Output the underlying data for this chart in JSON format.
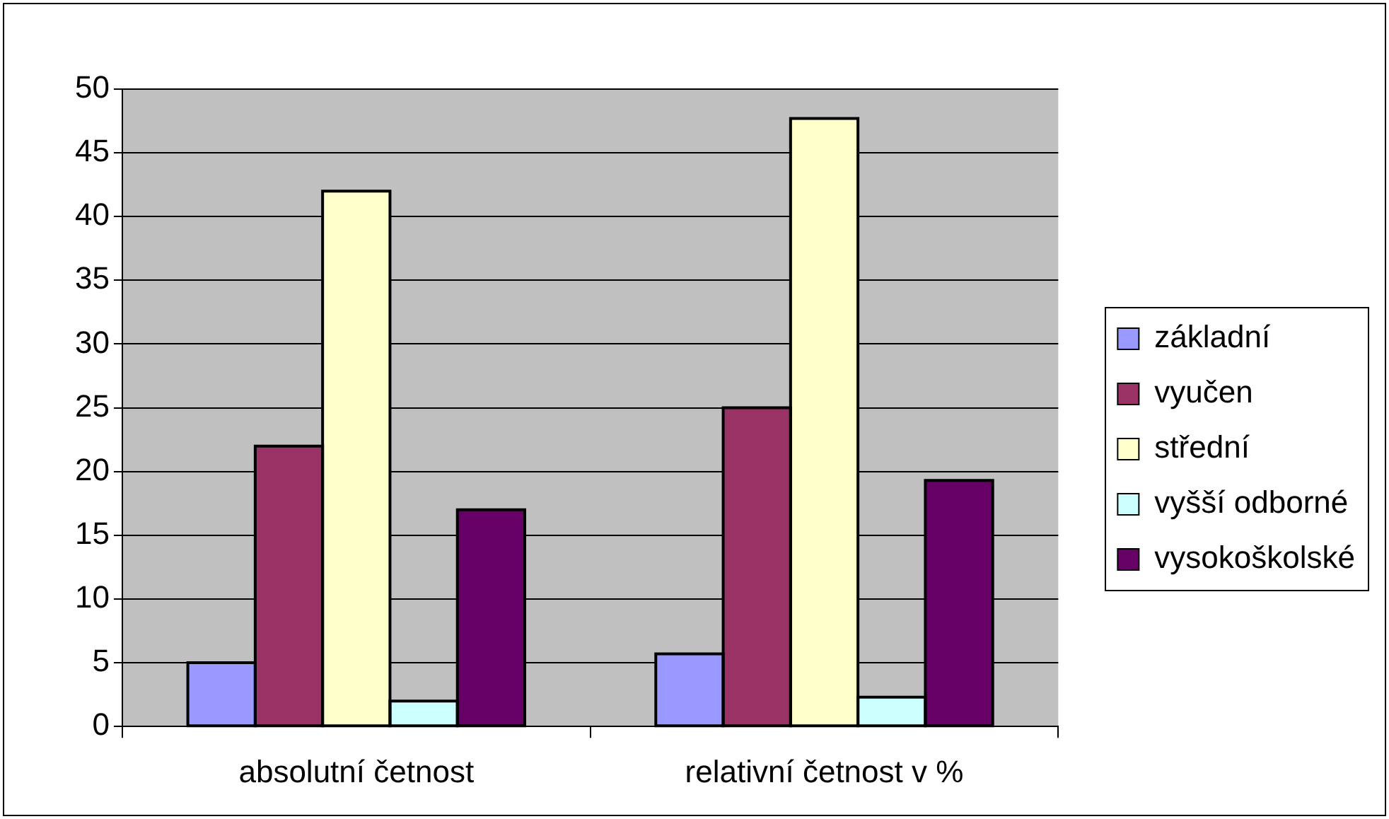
{
  "chart_data": {
    "type": "bar",
    "categories": [
      "absolutní četnost",
      "relativní četnost v %"
    ],
    "series": [
      {
        "name": "základní",
        "color": "#9999ff",
        "values": [
          5,
          5.7
        ]
      },
      {
        "name": "vyučen",
        "color": "#993366",
        "values": [
          22,
          25
        ]
      },
      {
        "name": "střední",
        "color": "#ffffcc",
        "values": [
          42,
          47.7
        ]
      },
      {
        "name": "vyšší odborné",
        "color": "#ccffff",
        "values": [
          2,
          2.3
        ]
      },
      {
        "name": "vysokoškolské",
        "color": "#660066",
        "values": [
          17,
          19.3
        ]
      }
    ],
    "ylim": [
      0,
      50
    ],
    "yticks": [
      0,
      5,
      10,
      15,
      20,
      25,
      30,
      35,
      40,
      45,
      50
    ],
    "grid": "y",
    "legend": "right"
  }
}
